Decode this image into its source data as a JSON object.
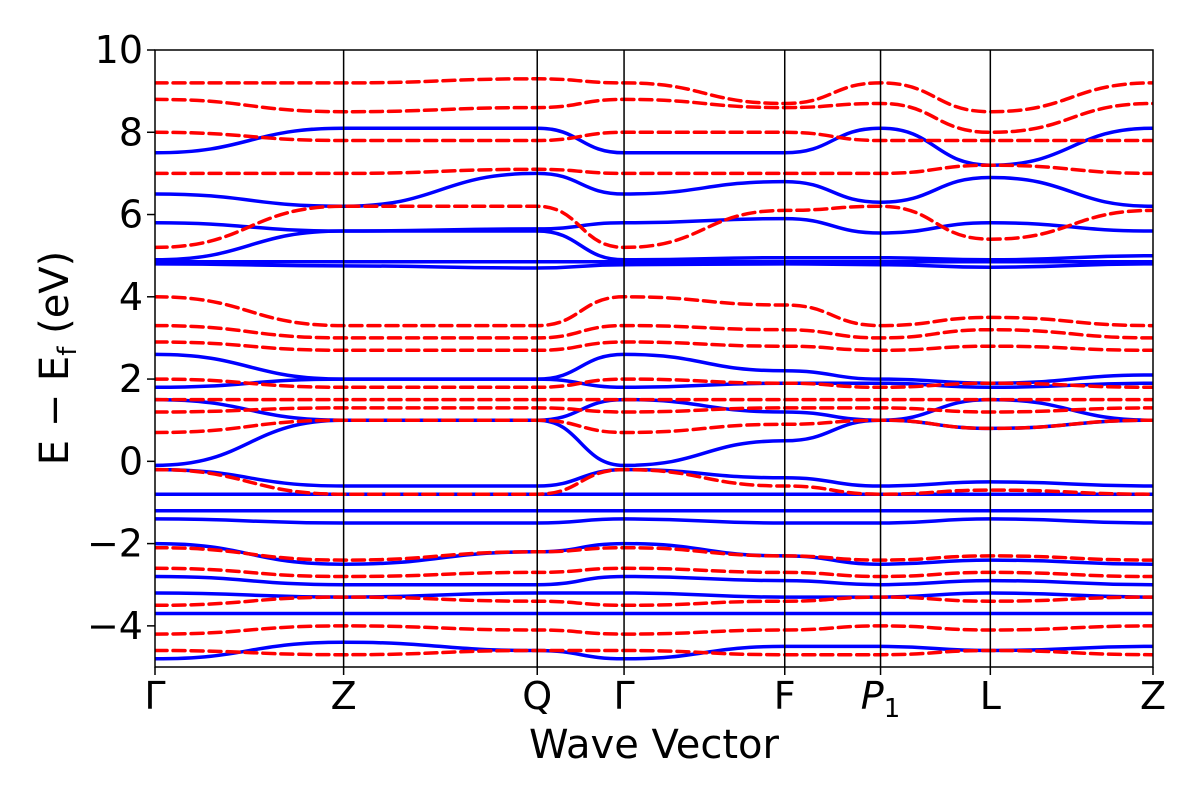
{
  "chart_data": {
    "type": "line",
    "xlabel": "Wave Vector",
    "ylabel_parts": {
      "main": "E − E",
      "sub": "f",
      "unit": " (eV)"
    },
    "ylim": [
      -5,
      10
    ],
    "yticks": [
      {
        "value": -4,
        "label": "−4"
      },
      {
        "value": -2,
        "label": "−2"
      },
      {
        "value": 0,
        "label": "0"
      },
      {
        "value": 2,
        "label": "2"
      },
      {
        "value": 4,
        "label": "4"
      },
      {
        "value": 6,
        "label": "6"
      },
      {
        "value": 8,
        "label": "8"
      },
      {
        "value": 10,
        "label": "10"
      }
    ],
    "kpoints": [
      {
        "label": "Γ",
        "sub": "",
        "x": 0.0
      },
      {
        "label": "Z",
        "sub": "",
        "x": 0.189
      },
      {
        "label": "Q",
        "sub": "",
        "x": 0.383
      },
      {
        "label": "Γ",
        "sub": "",
        "x": 0.47
      },
      {
        "label": "F",
        "sub": "",
        "x": 0.631
      },
      {
        "label": "P",
        "sub": "1",
        "x": 0.727
      },
      {
        "label": "L",
        "sub": "",
        "x": 0.837
      },
      {
        "label": "Z",
        "sub": "",
        "x": 1.0
      }
    ],
    "grid": false,
    "series": [
      {
        "style": "solid",
        "color": "#0000ff",
        "bands": [
          [
            4.85,
            4.85,
            4.85,
            4.85,
            4.85,
            4.85,
            4.85,
            4.85
          ],
          [
            4.8,
            4.75,
            4.7,
            4.78,
            4.8,
            4.78,
            4.72,
            4.8
          ],
          [
            4.9,
            5.6,
            5.6,
            4.9,
            4.95,
            4.95,
            4.9,
            5.0
          ],
          [
            5.8,
            5.6,
            5.65,
            5.8,
            5.9,
            5.55,
            5.8,
            5.6
          ],
          [
            6.5,
            6.2,
            7.0,
            6.5,
            6.8,
            6.3,
            6.9,
            6.2
          ],
          [
            7.5,
            8.1,
            8.1,
            7.5,
            7.5,
            8.1,
            7.2,
            8.1
          ],
          [
            2.6,
            2.0,
            2.0,
            2.6,
            2.2,
            2.0,
            1.9,
            2.1
          ],
          [
            1.8,
            2.0,
            2.0,
            1.8,
            1.9,
            1.9,
            1.8,
            1.9
          ],
          [
            1.5,
            1.0,
            1.0,
            1.5,
            1.2,
            1.0,
            1.5,
            1.0
          ],
          [
            -0.1,
            1.0,
            1.0,
            -0.1,
            0.5,
            1.0,
            0.8,
            1.0
          ],
          [
            -0.2,
            -0.6,
            -0.6,
            -0.2,
            -0.4,
            -0.6,
            -0.5,
            -0.6
          ],
          [
            -0.8,
            -0.8,
            -0.8,
            -0.8,
            -0.8,
            -0.8,
            -0.8,
            -0.8
          ],
          [
            -1.2,
            -1.2,
            -1.2,
            -1.2,
            -1.2,
            -1.2,
            -1.2,
            -1.2
          ],
          [
            -1.4,
            -1.5,
            -1.5,
            -1.4,
            -1.5,
            -1.5,
            -1.4,
            -1.5
          ],
          [
            -2.0,
            -2.5,
            -2.2,
            -2.0,
            -2.3,
            -2.5,
            -2.4,
            -2.5
          ],
          [
            -2.8,
            -3.0,
            -3.0,
            -2.8,
            -2.9,
            -3.0,
            -2.9,
            -3.0
          ],
          [
            -3.2,
            -3.3,
            -3.2,
            -3.2,
            -3.3,
            -3.3,
            -3.2,
            -3.3
          ],
          [
            -3.7,
            -3.7,
            -3.7,
            -3.7,
            -3.7,
            -3.7,
            -3.7,
            -3.7
          ],
          [
            -4.8,
            -4.4,
            -4.6,
            -4.8,
            -4.5,
            -4.5,
            -4.6,
            -4.5
          ]
        ]
      },
      {
        "style": "dashed",
        "color": "#ff0000",
        "bands": [
          [
            9.2,
            9.2,
            9.3,
            9.2,
            8.7,
            9.2,
            8.5,
            9.2
          ],
          [
            8.8,
            8.5,
            8.6,
            8.8,
            8.6,
            8.7,
            8.0,
            8.7
          ],
          [
            8.0,
            7.8,
            7.8,
            8.0,
            8.0,
            7.8,
            7.8,
            7.8
          ],
          [
            7.0,
            7.0,
            7.1,
            7.0,
            7.0,
            7.0,
            7.2,
            7.0
          ],
          [
            5.2,
            6.2,
            6.2,
            5.2,
            6.1,
            6.2,
            5.4,
            6.1
          ],
          [
            4.0,
            3.3,
            3.3,
            4.0,
            3.8,
            3.3,
            3.5,
            3.3
          ],
          [
            3.3,
            3.0,
            3.0,
            3.3,
            3.2,
            3.0,
            3.2,
            3.0
          ],
          [
            2.9,
            2.7,
            2.7,
            2.9,
            2.8,
            2.7,
            2.8,
            2.7
          ],
          [
            2.0,
            1.8,
            1.8,
            2.0,
            1.9,
            1.8,
            1.9,
            1.8
          ],
          [
            1.5,
            1.5,
            1.5,
            1.5,
            1.5,
            1.5,
            1.5,
            1.5
          ],
          [
            1.2,
            1.3,
            1.3,
            1.2,
            1.3,
            1.3,
            1.2,
            1.3
          ],
          [
            0.7,
            1.0,
            1.0,
            0.7,
            0.9,
            1.0,
            0.8,
            1.0
          ],
          [
            -0.2,
            -0.8,
            -0.8,
            -0.2,
            -0.6,
            -0.8,
            -0.7,
            -0.8
          ],
          [
            -2.1,
            -2.4,
            -2.2,
            -2.1,
            -2.3,
            -2.4,
            -2.3,
            -2.4
          ],
          [
            -2.6,
            -2.8,
            -2.7,
            -2.6,
            -2.7,
            -2.8,
            -2.7,
            -2.8
          ],
          [
            -3.5,
            -3.3,
            -3.4,
            -3.5,
            -3.4,
            -3.3,
            -3.4,
            -3.3
          ],
          [
            -4.2,
            -4.0,
            -4.1,
            -4.2,
            -4.1,
            -4.0,
            -4.1,
            -4.0
          ],
          [
            -4.6,
            -4.7,
            -4.6,
            -4.6,
            -4.7,
            -4.7,
            -4.6,
            -4.7
          ]
        ]
      }
    ]
  }
}
